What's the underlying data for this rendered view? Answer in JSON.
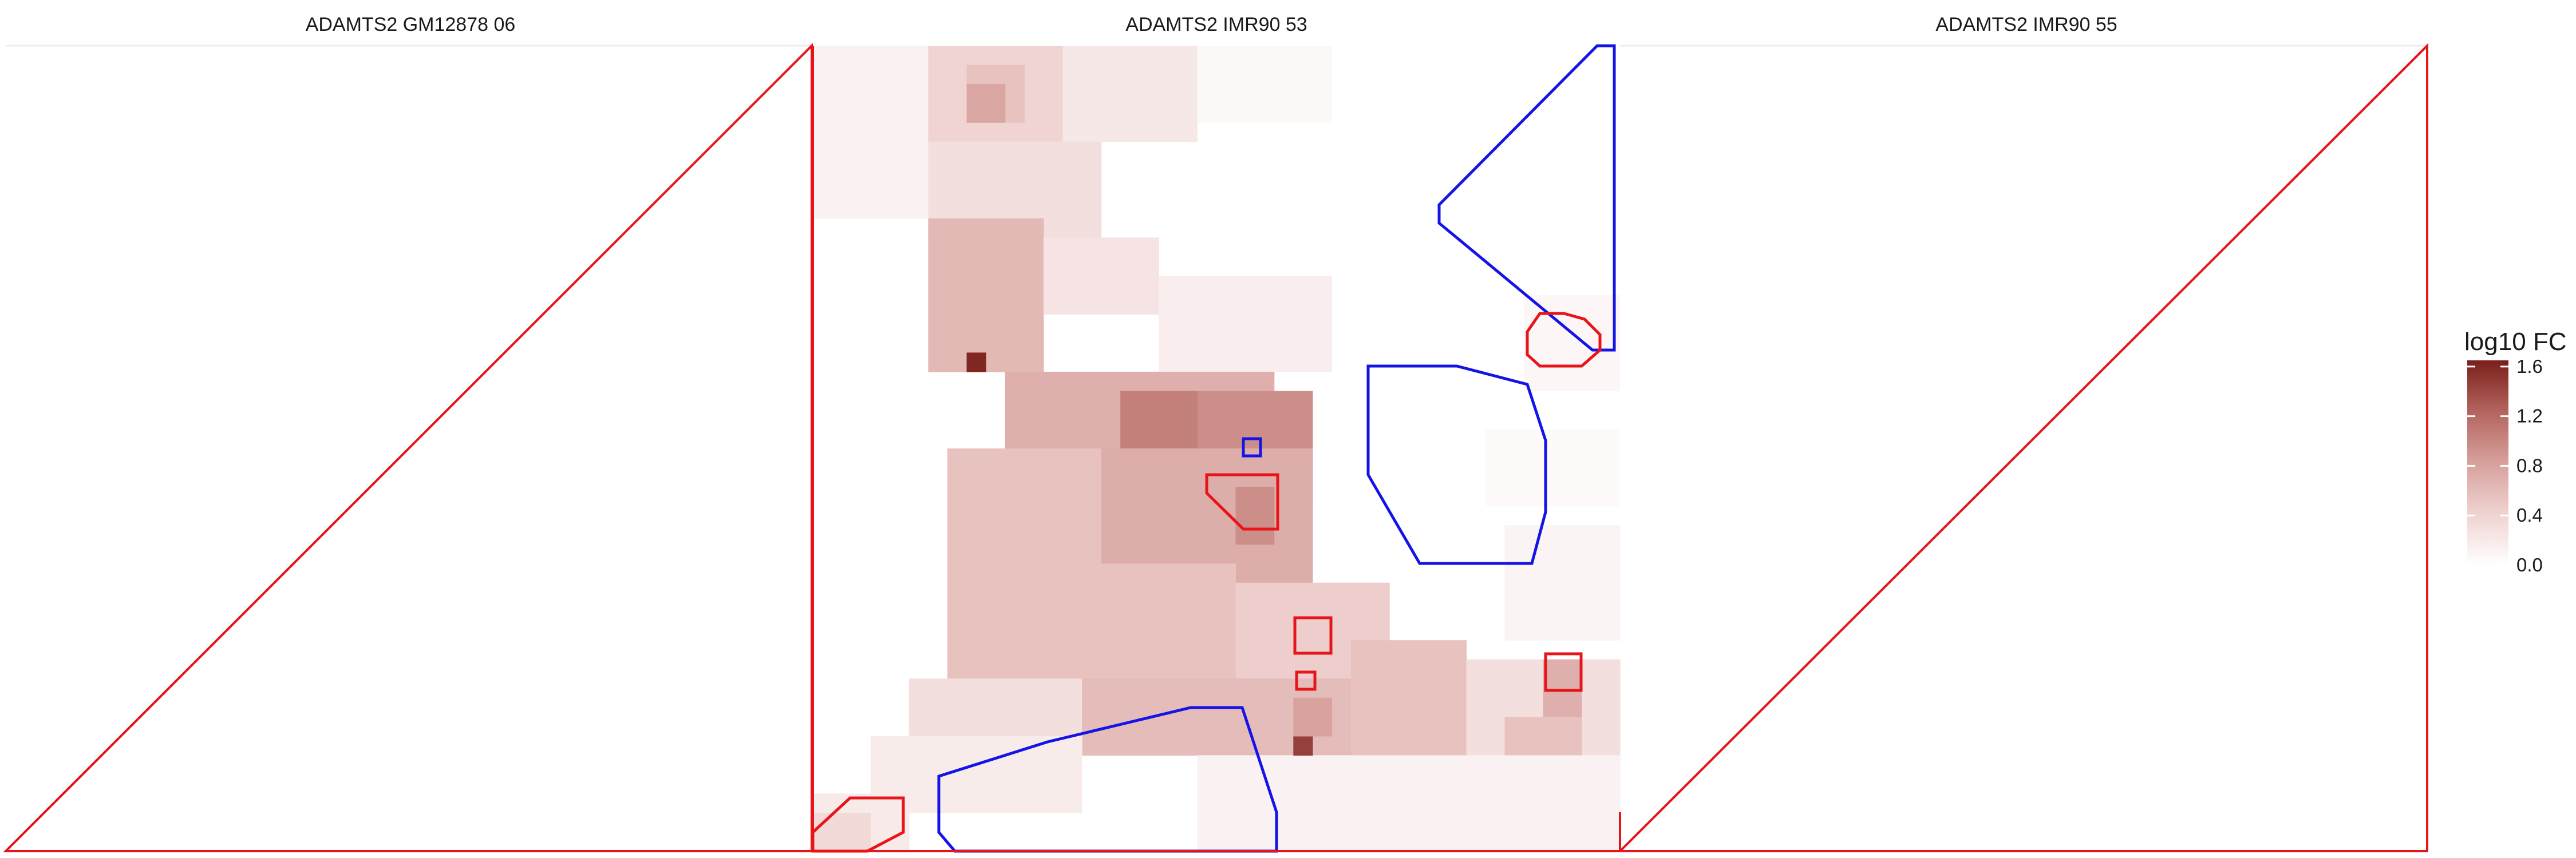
{
  "chart_data": {
    "type": "heatmap",
    "facets": [
      {
        "title": "ADAMTS2 GM12878 06"
      },
      {
        "title": "ADAMTS2 IMR90 53"
      },
      {
        "title": "ADAMTS2 IMR90 55"
      }
    ],
    "legend": {
      "title": "log10 FC",
      "ticks": [
        "1.6",
        "1.2",
        "0.8",
        "0.4",
        "0.0"
      ],
      "tick_values": [
        1.6,
        1.2,
        0.8,
        0.4,
        0.0
      ],
      "range": [
        0.0,
        1.65
      ],
      "color_low": "#ffffff",
      "color_high": "#7a1f1a"
    },
    "colors": {
      "gain_outline": "#e8141a",
      "loss_outline": "#1414e6",
      "triangle_outline": "#e8141a"
    },
    "grid_size": 42,
    "grid_note": "values in log10 FC for facet 2 (IMR90 53); row index 0 = top",
    "blocks": [
      {
        "r0": 0,
        "r1": 9,
        "c0": 0,
        "c1": 6,
        "v": 0.12
      },
      {
        "r0": 0,
        "r1": 5,
        "c0": 6,
        "c1": 13,
        "v": 0.4
      },
      {
        "r0": 0,
        "r1": 5,
        "c0": 13,
        "c1": 20,
        "v": 0.22
      },
      {
        "r0": 0,
        "r1": 4,
        "c0": 20,
        "c1": 27,
        "v": 0.07
      },
      {
        "r0": 1,
        "r1": 4,
        "c0": 8,
        "c1": 11,
        "v": 0.55
      },
      {
        "r0": 2,
        "r1": 4,
        "c0": 8,
        "c1": 10,
        "v": 0.78
      },
      {
        "r0": 5,
        "r1": 10,
        "c0": 6,
        "c1": 15,
        "v": 0.3
      },
      {
        "r0": 9,
        "r1": 17,
        "c0": 6,
        "c1": 12,
        "v": 0.62
      },
      {
        "r0": 10,
        "r1": 14,
        "c0": 12,
        "c1": 18,
        "v": 0.25
      },
      {
        "r0": 12,
        "r1": 17,
        "c0": 18,
        "c1": 27,
        "v": 0.16
      },
      {
        "r0": 17,
        "r1": 21,
        "c0": 10,
        "c1": 24,
        "v": 0.7
      },
      {
        "r0": 21,
        "r1": 27,
        "c0": 7,
        "c1": 17,
        "v": 0.55
      },
      {
        "r0": 18,
        "r1": 24,
        "c0": 17,
        "c1": 26,
        "v": 0.95
      },
      {
        "r0": 18,
        "r1": 22,
        "c0": 16,
        "c1": 20,
        "v": 1.05
      },
      {
        "r0": 21,
        "r1": 28,
        "c0": 15,
        "c1": 26,
        "v": 0.72
      },
      {
        "r0": 27,
        "r1": 34,
        "c0": 7,
        "c1": 22,
        "v": 0.55
      },
      {
        "r0": 28,
        "r1": 33,
        "c0": 22,
        "c1": 30,
        "v": 0.45
      },
      {
        "r0": 33,
        "r1": 37,
        "c0": 5,
        "c1": 14,
        "v": 0.3
      },
      {
        "r0": 33,
        "r1": 37,
        "c0": 14,
        "c1": 31,
        "v": 0.6
      },
      {
        "r0": 31,
        "r1": 37,
        "c0": 28,
        "c1": 34,
        "v": 0.55
      },
      {
        "r0": 32,
        "r1": 40,
        "c0": 34,
        "c1": 42,
        "v": 0.3
      },
      {
        "r0": 35,
        "r1": 38,
        "c0": 36,
        "c1": 40,
        "v": 0.55
      },
      {
        "r0": 37,
        "r1": 42,
        "c0": 20,
        "c1": 42,
        "v": 0.12
      },
      {
        "r0": 36,
        "r1": 40,
        "c0": 3,
        "c1": 14,
        "v": 0.18
      },
      {
        "r0": 39,
        "r1": 42,
        "c0": 0,
        "c1": 5,
        "v": 0.2
      },
      {
        "r0": 40,
        "r1": 42,
        "c0": 0,
        "c1": 3,
        "v": 0.35
      },
      {
        "r0": 20,
        "r1": 24,
        "c0": 35,
        "c1": 42,
        "v": 0.05
      },
      {
        "r0": 25,
        "r1": 31,
        "c0": 36,
        "c1": 42,
        "v": 0.1
      },
      {
        "r0": 13,
        "r1": 18,
        "c0": 37,
        "c1": 42,
        "v": 0.08
      },
      {
        "r0": 16,
        "r1": 17,
        "c0": 8,
        "c1": 9,
        "v": 1.6
      },
      {
        "r0": 36,
        "r1": 37,
        "c0": 25,
        "c1": 26,
        "v": 1.45
      },
      {
        "r0": 23,
        "r1": 26,
        "c0": 22,
        "c1": 24,
        "v": 0.95
      },
      {
        "r0": 34,
        "r1": 36,
        "c0": 25,
        "c1": 27,
        "v": 0.8
      },
      {
        "r0": 32,
        "r1": 35,
        "c0": 38,
        "c1": 40,
        "v": 0.7
      }
    ]
  }
}
